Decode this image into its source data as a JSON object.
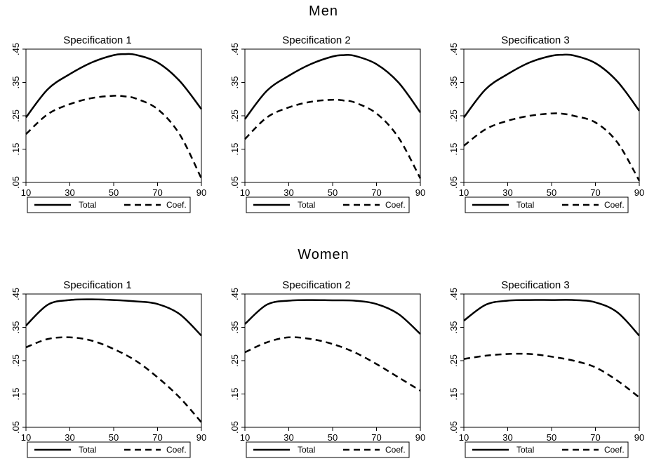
{
  "groups": [
    {
      "title": "Men",
      "panels": [
        {
          "title": "Specification 1",
          "legend": [
            "Total",
            "Coef."
          ]
        },
        {
          "title": "Specification 2",
          "legend": [
            "Total",
            "Coef."
          ]
        },
        {
          "title": "Specification 3",
          "legend": [
            "Total",
            "Coef."
          ]
        }
      ]
    },
    {
      "title": "Women",
      "panels": [
        {
          "title": "Specification 1",
          "legend": [
            "Total",
            "Coef."
          ]
        },
        {
          "title": "Specification 2",
          "legend": [
            "Total",
            "Coef."
          ]
        },
        {
          "title": "Specification 3",
          "legend": [
            "Total",
            "Coef."
          ]
        }
      ]
    }
  ],
  "chart_data": [
    {
      "type": "line",
      "group": "Men",
      "title": "Specification 1",
      "x": [
        10,
        20,
        30,
        40,
        50,
        55,
        60,
        70,
        80,
        90
      ],
      "series": [
        {
          "name": "Total",
          "style": "solid",
          "values": [
            0.245,
            0.33,
            0.375,
            0.41,
            0.432,
            0.435,
            0.433,
            0.41,
            0.355,
            0.27
          ]
        },
        {
          "name": "Coef.",
          "style": "dashed",
          "values": [
            0.195,
            0.255,
            0.285,
            0.303,
            0.31,
            0.308,
            0.302,
            0.27,
            0.195,
            0.062
          ]
        }
      ],
      "xticks": [
        "10",
        "30",
        "50",
        "70",
        "90"
      ],
      "yticks": [
        ".05",
        ".15",
        ".25",
        ".35",
        ".45"
      ],
      "xlim": [
        10,
        90
      ],
      "ylim": [
        0.05,
        0.45
      ],
      "grid": false,
      "legend": "bottom"
    },
    {
      "type": "line",
      "group": "Men",
      "title": "Specification 2",
      "x": [
        10,
        20,
        30,
        40,
        50,
        55,
        60,
        70,
        80,
        90
      ],
      "series": [
        {
          "name": "Total",
          "style": "solid",
          "values": [
            0.24,
            0.325,
            0.37,
            0.405,
            0.428,
            0.432,
            0.43,
            0.405,
            0.35,
            0.26
          ]
        },
        {
          "name": "Coef.",
          "style": "dashed",
          "values": [
            0.18,
            0.245,
            0.275,
            0.292,
            0.298,
            0.296,
            0.29,
            0.257,
            0.185,
            0.062
          ]
        }
      ],
      "xticks": [
        "10",
        "30",
        "50",
        "70",
        "90"
      ],
      "yticks": [
        ".05",
        ".15",
        ".25",
        ".35",
        ".45"
      ],
      "xlim": [
        10,
        90
      ],
      "ylim": [
        0.05,
        0.45
      ],
      "grid": false,
      "legend": "bottom"
    },
    {
      "type": "line",
      "group": "Men",
      "title": "Specification 3",
      "x": [
        10,
        20,
        30,
        40,
        50,
        55,
        60,
        70,
        80,
        90
      ],
      "series": [
        {
          "name": "Total",
          "style": "solid",
          "values": [
            0.245,
            0.33,
            0.375,
            0.41,
            0.43,
            0.433,
            0.431,
            0.408,
            0.353,
            0.265
          ]
        },
        {
          "name": "Coef.",
          "style": "dashed",
          "values": [
            0.16,
            0.21,
            0.235,
            0.25,
            0.257,
            0.256,
            0.25,
            0.23,
            0.17,
            0.055
          ]
        }
      ],
      "xticks": [
        "10",
        "30",
        "50",
        "70",
        "90"
      ],
      "yticks": [
        ".05",
        ".15",
        ".25",
        ".35",
        ".45"
      ],
      "xlim": [
        10,
        90
      ],
      "ylim": [
        0.05,
        0.45
      ],
      "grid": false,
      "legend": "bottom"
    },
    {
      "type": "line",
      "group": "Women",
      "title": "Specification 1",
      "x": [
        10,
        20,
        30,
        40,
        50,
        60,
        70,
        80,
        90
      ],
      "series": [
        {
          "name": "Total",
          "style": "solid",
          "values": [
            0.355,
            0.418,
            0.432,
            0.434,
            0.432,
            0.428,
            0.42,
            0.39,
            0.325
          ]
        },
        {
          "name": "Coef.",
          "style": "dashed",
          "values": [
            0.29,
            0.315,
            0.32,
            0.31,
            0.285,
            0.25,
            0.2,
            0.14,
            0.065
          ]
        }
      ],
      "xticks": [
        "10",
        "30",
        "50",
        "70",
        "90"
      ],
      "yticks": [
        ".05",
        ".15",
        ".25",
        ".35",
        ".45"
      ],
      "xlim": [
        10,
        90
      ],
      "ylim": [
        0.05,
        0.45
      ],
      "grid": false,
      "legend": "bottom"
    },
    {
      "type": "line",
      "group": "Women",
      "title": "Specification 2",
      "x": [
        10,
        20,
        30,
        40,
        50,
        60,
        70,
        80,
        90
      ],
      "series": [
        {
          "name": "Total",
          "style": "solid",
          "values": [
            0.36,
            0.418,
            0.43,
            0.432,
            0.431,
            0.43,
            0.42,
            0.39,
            0.33
          ]
        },
        {
          "name": "Coef.",
          "style": "dashed",
          "values": [
            0.275,
            0.305,
            0.32,
            0.315,
            0.3,
            0.275,
            0.24,
            0.2,
            0.16
          ]
        }
      ],
      "xticks": [
        "10",
        "30",
        "50",
        "70",
        "90"
      ],
      "yticks": [
        ".05",
        ".15",
        ".25",
        ".35",
        ".45"
      ],
      "xlim": [
        10,
        90
      ],
      "ylim": [
        0.05,
        0.45
      ],
      "grid": false,
      "legend": "bottom"
    },
    {
      "type": "line",
      "group": "Women",
      "title": "Specification 3",
      "x": [
        10,
        20,
        30,
        40,
        50,
        60,
        70,
        80,
        90
      ],
      "series": [
        {
          "name": "Total",
          "style": "solid",
          "values": [
            0.37,
            0.418,
            0.43,
            0.432,
            0.432,
            0.432,
            0.425,
            0.395,
            0.325
          ]
        },
        {
          "name": "Coef.",
          "style": "dashed",
          "values": [
            0.255,
            0.265,
            0.27,
            0.27,
            0.262,
            0.25,
            0.23,
            0.19,
            0.14
          ]
        }
      ],
      "xticks": [
        "10",
        "30",
        "50",
        "70",
        "90"
      ],
      "yticks": [
        ".05",
        ".15",
        ".25",
        ".35",
        ".45"
      ],
      "xlim": [
        10,
        90
      ],
      "ylim": [
        0.05,
        0.45
      ],
      "grid": false,
      "legend": "bottom"
    }
  ]
}
